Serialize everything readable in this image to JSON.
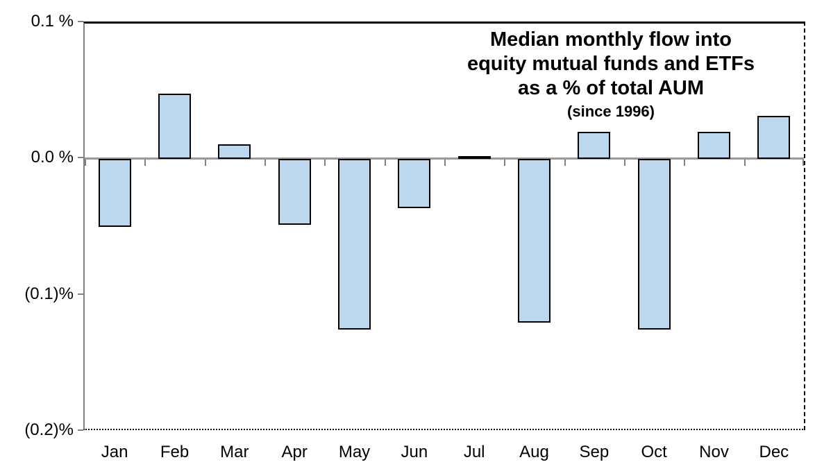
{
  "title": {
    "line1": "Median monthly flow into",
    "line2": "equity mutual funds and ETFs",
    "line3": "as a % of total AUM",
    "line4": "(since 1996)"
  },
  "chart_data": {
    "type": "bar",
    "title": "Median monthly flow into equity mutual funds and ETFs as a % of total AUM (since 1996)",
    "categories": [
      "Jan",
      "Feb",
      "Mar",
      "Apr",
      "May",
      "Jun",
      "Jul",
      "Aug",
      "Sep",
      "Oct",
      "Nov",
      "Dec"
    ],
    "values": [
      -0.05,
      0.048,
      0.011,
      -0.048,
      -0.125,
      -0.036,
      0.002,
      -0.12,
      0.02,
      -0.125,
      0.02,
      0.032
    ],
    "xlabel": "",
    "ylabel": "",
    "ylim": [
      -0.2,
      0.1
    ],
    "yticks": [
      {
        "value": 0.1,
        "label": "0.1 %"
      },
      {
        "value": 0.0,
        "label": "0.0 %"
      },
      {
        "value": -0.1,
        "label": "(0.1)%"
      },
      {
        "value": -0.2,
        "label": "(0.2)%"
      }
    ],
    "grid": false,
    "legend": "none",
    "bar_fill_color": "#BDD7EE",
    "bar_border_color": "#000000",
    "zero_line_color": "#9a9a9a"
  }
}
